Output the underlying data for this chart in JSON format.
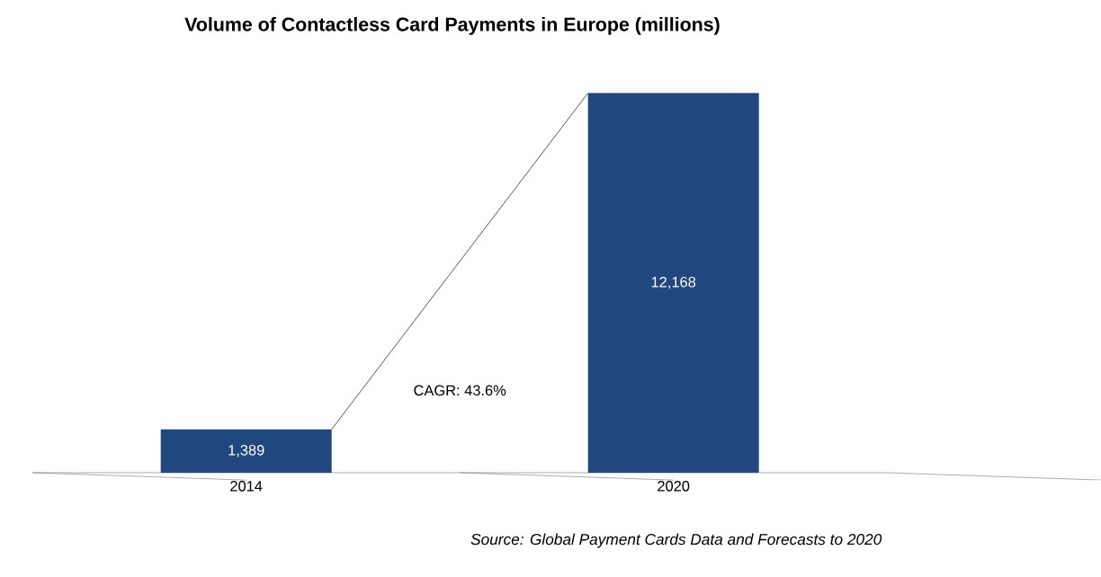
{
  "chart_data": {
    "type": "bar",
    "title": "Volume of Contactless Card Payments in Europe (millions)",
    "categories": [
      "2014",
      "2020"
    ],
    "values": [
      1389,
      12168
    ],
    "value_labels": [
      "1,389",
      "12,168"
    ],
    "color": "#21487e",
    "annotations": [
      "CAGR: 43.6%",
      "Source: Global Payment Cards Data and Forecasts to 2020"
    ]
  }
}
